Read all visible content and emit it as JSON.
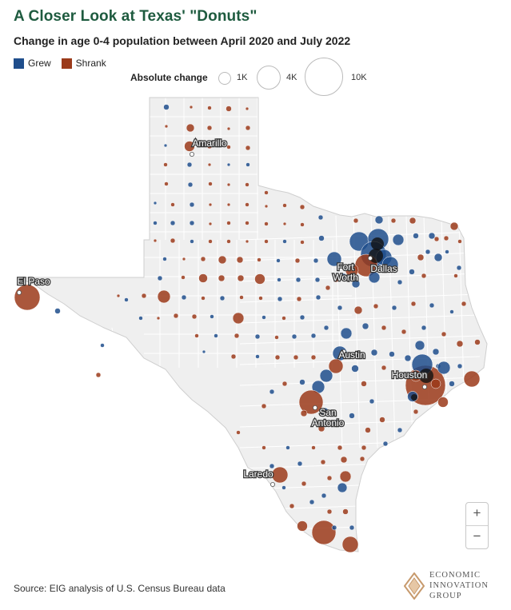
{
  "title": "A Closer Look at Texas' \"Donuts\"",
  "subtitle": "Change in age 0-4 population between April 2020 and July 2022",
  "legend": {
    "colors": [
      {
        "label": "Grew",
        "color": "#1f4e8c"
      },
      {
        "label": "Shrank",
        "color": "#9b3a1a"
      }
    ],
    "size_title": "Absolute change",
    "sizes": [
      {
        "label": "1K",
        "value": 1000
      },
      {
        "label": "4K",
        "value": 4000
      },
      {
        "label": "10K",
        "value": 10000
      }
    ]
  },
  "map": {
    "state": "Texas",
    "land_color": "#efefef",
    "border_color": "#ffffff",
    "cities": [
      {
        "name": "Amarillo"
      },
      {
        "name": "El Paso"
      },
      {
        "name": "Fort Worth"
      },
      {
        "name": "Dallas"
      },
      {
        "name": "Austin"
      },
      {
        "name": "Houston"
      },
      {
        "name": "San Antonio"
      },
      {
        "name": "Laredo"
      }
    ]
  },
  "zoom": {
    "in_label": "+",
    "out_label": "−"
  },
  "source": "Source: EIG analysis of U.S. Census Bureau data",
  "brand": {
    "line1": "ECONOMIC",
    "line2": "INNOVATION",
    "line3": "GROUP"
  }
}
